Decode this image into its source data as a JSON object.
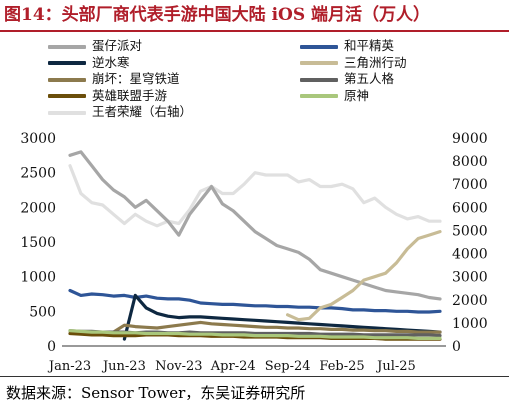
{
  "title": "图14：头部厂商代表手游中国大陆 iOS 端月活（万人）",
  "source": "数据来源：Sensor Tower，东吴证券研究所",
  "chart_data": {
    "type": "line",
    "x": [
      "Jan-23",
      "Feb-23",
      "Mar-23",
      "Apr-23",
      "May-23",
      "Jun-23",
      "Jul-23",
      "Aug-23",
      "Sep-23",
      "Oct-23",
      "Nov-23",
      "Dec-23",
      "Jan-24",
      "Feb-24",
      "Mar-24",
      "Apr-24",
      "May-24",
      "Jun-24",
      "Jul-24",
      "Aug-24",
      "Sep-24",
      "Oct-24",
      "Nov-24",
      "Dec-24",
      "Jan-25",
      "Feb-25",
      "Mar-25",
      "Apr-25",
      "May-25",
      "Jun-25",
      "Jul-25",
      "Aug-25",
      "Sep-25",
      "Oct-25",
      "Nov-25"
    ],
    "xticks": [
      "Jan-23",
      "Jun-23",
      "Nov-23",
      "Apr-24",
      "Sep-24",
      "Feb-25",
      "Jul-25"
    ],
    "left_axis": {
      "ticks": [
        0,
        500,
        1000,
        1500,
        2000,
        2500,
        3000
      ],
      "ylim": [
        0,
        3000
      ]
    },
    "right_axis": {
      "ticks": [
        0,
        1000,
        2000,
        3000,
        4000,
        5000,
        6000,
        7000,
        8000,
        9000
      ],
      "ylim": [
        0,
        9000
      ]
    },
    "grid": false,
    "legend_position": "top, two columns",
    "series": [
      {
        "name": "蛋仔派对",
        "color": "#a6a6a6",
        "axis": "left",
        "values": [
          2750,
          2800,
          2600,
          2400,
          2250,
          2150,
          2000,
          2100,
          1950,
          1800,
          1600,
          1900,
          2100,
          2300,
          2050,
          1950,
          1800,
          1650,
          1550,
          1450,
          1400,
          1350,
          1250,
          1100,
          1050,
          1000,
          950,
          900,
          850,
          800,
          780,
          760,
          740,
          700,
          680
        ]
      },
      {
        "name": "和平精英",
        "color": "#2e5597",
        "axis": "left",
        "values": [
          800,
          730,
          750,
          740,
          720,
          730,
          700,
          720,
          690,
          680,
          680,
          660,
          620,
          610,
          600,
          600,
          590,
          580,
          580,
          570,
          570,
          560,
          560,
          550,
          550,
          540,
          520,
          520,
          510,
          510,
          500,
          500,
          490,
          490,
          500
        ]
      },
      {
        "name": "逆水寒",
        "color": "#0e2841",
        "axis": "left",
        "values": [
          null,
          null,
          null,
          null,
          null,
          100,
          730,
          550,
          470,
          430,
          410,
          420,
          420,
          410,
          400,
          390,
          380,
          370,
          360,
          350,
          340,
          330,
          320,
          310,
          300,
          290,
          280,
          270,
          260,
          250,
          240,
          230,
          220,
          210,
          200
        ]
      },
      {
        "name": "三角洲行动",
        "color": "#c8bc96",
        "axis": "left",
        "values": [
          null,
          null,
          null,
          null,
          null,
          null,
          null,
          null,
          null,
          null,
          null,
          null,
          null,
          null,
          null,
          null,
          null,
          null,
          null,
          null,
          450,
          380,
          400,
          550,
          600,
          700,
          800,
          950,
          1000,
          1050,
          1200,
          1400,
          1550,
          1600,
          1650
        ]
      },
      {
        "name": "崩坏：星穹铁道",
        "color": "#8c7a4d",
        "axis": "left",
        "values": [
          null,
          null,
          null,
          null,
          200,
          300,
          280,
          270,
          260,
          280,
          300,
          320,
          340,
          320,
          310,
          300,
          290,
          280,
          270,
          270,
          260,
          260,
          250,
          250,
          240,
          240,
          230,
          230,
          220,
          220,
          210,
          210,
          200,
          200,
          200
        ]
      },
      {
        "name": "第五人格",
        "color": "#606060",
        "axis": "left",
        "values": [
          220,
          210,
          210,
          200,
          200,
          200,
          190,
          200,
          200,
          190,
          190,
          200,
          190,
          190,
          190,
          190,
          190,
          180,
          180,
          180,
          180,
          180,
          180,
          170,
          170,
          170,
          170,
          160,
          160,
          160,
          160,
          160,
          160,
          160,
          150
        ]
      },
      {
        "name": "英雄联盟手游",
        "color": "#6b4e0a",
        "axis": "left",
        "values": [
          180,
          170,
          160,
          160,
          150,
          150,
          150,
          160,
          160,
          160,
          150,
          150,
          150,
          140,
          140,
          140,
          130,
          130,
          130,
          130,
          120,
          120,
          120,
          120,
          110,
          110,
          110,
          110,
          110,
          100,
          100,
          100,
          100,
          100,
          100
        ]
      },
      {
        "name": "原神",
        "color": "#a9c77c",
        "axis": "left",
        "values": [
          220,
          210,
          200,
          200,
          190,
          190,
          190,
          180,
          180,
          180,
          180,
          170,
          170,
          170,
          160,
          160,
          160,
          150,
          150,
          150,
          150,
          140,
          140,
          140,
          130,
          130,
          130,
          130,
          120,
          120,
          120,
          120,
          110,
          110,
          110
        ]
      },
      {
        "name": "王者荣耀（右轴）",
        "color": "#e0e0e0",
        "axis": "right",
        "values": [
          7800,
          6600,
          6200,
          6100,
          5700,
          5300,
          5700,
          5400,
          5200,
          5400,
          5300,
          5900,
          6700,
          6900,
          6600,
          6600,
          7000,
          7500,
          7400,
          7400,
          7400,
          7100,
          7200,
          6900,
          6900,
          7000,
          6800,
          6200,
          6400,
          6000,
          5700,
          5500,
          5600,
          5400,
          5400
        ]
      }
    ]
  }
}
